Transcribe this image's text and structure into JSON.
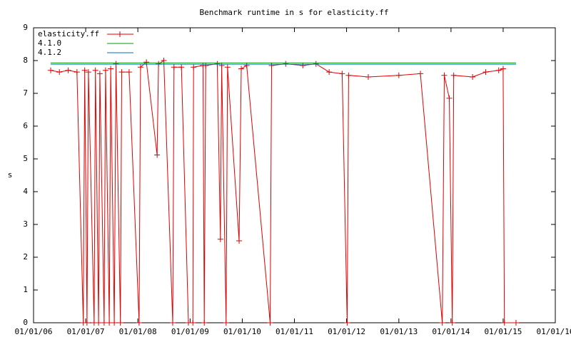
{
  "chart_data": {
    "type": "line",
    "title": "Benchmark runtime in s for elasticity.ff",
    "y_label": "s",
    "xlim": [
      "2006-01-01",
      "2016-01-01"
    ],
    "xticks": [
      {
        "value": "2006-01-01",
        "label": "01/01/06"
      },
      {
        "value": "2007-01-01",
        "label": "01/01/07"
      },
      {
        "value": "2008-01-01",
        "label": "01/01/08"
      },
      {
        "value": "2009-01-01",
        "label": "01/01/09"
      },
      {
        "value": "2010-01-01",
        "label": "01/01/10"
      },
      {
        "value": "2011-01-01",
        "label": "01/01/11"
      },
      {
        "value": "2012-01-01",
        "label": "01/01/12"
      },
      {
        "value": "2013-01-01",
        "label": "01/01/13"
      },
      {
        "value": "2014-01-01",
        "label": "01/01/14"
      },
      {
        "value": "2015-01-01",
        "label": "01/01/15"
      },
      {
        "value": "2016-01-01",
        "label": "01/01/16"
      }
    ],
    "ylim": [
      0,
      9
    ],
    "yticks": [
      0,
      1,
      2,
      3,
      4,
      5,
      6,
      7,
      8,
      9
    ],
    "legend": "top-left",
    "series": [
      {
        "name": "elasticity.ff",
        "color": "#e00000",
        "marker": "plus",
        "x": [
          "2006-05-01",
          "2006-07-01",
          "2006-09-01",
          "2006-11-01",
          "2006-12-15",
          "2006-12-25",
          "2007-01-10",
          "2007-01-20",
          "2007-03-01",
          "2007-03-10",
          "2007-04-01",
          "2007-04-10",
          "2007-05-10",
          "2007-05-20",
          "2007-06-15",
          "2007-06-25",
          "2007-07-20",
          "2007-08-01",
          "2007-09-01",
          "2007-09-10",
          "2007-11-01",
          "2008-01-10",
          "2008-01-20",
          "2008-03-01",
          "2008-05-15",
          "2008-05-25",
          "2008-07-01",
          "2008-09-01",
          "2008-09-10",
          "2008-11-01",
          "2008-12-20",
          "2009-01-20",
          "2009-01-25",
          "2009-04-01",
          "2009-04-10",
          "2009-04-20",
          "2009-07-10",
          "2009-08-01",
          "2009-08-10",
          "2009-09-10",
          "2009-09-20",
          "2009-12-10",
          "2009-12-25",
          "2010-02-01",
          "2010-07-15",
          "2010-07-25",
          "2010-11-01",
          "2011-03-01",
          "2011-06-01",
          "2011-09-01",
          "2011-12-01",
          "2012-01-05",
          "2012-01-15",
          "2012-06-01",
          "2013-01-01",
          "2013-06-01",
          "2013-11-01",
          "2013-11-15",
          "2013-12-20",
          "2014-01-10",
          "2014-01-20",
          "2014-06-01",
          "2014-09-01",
          "2014-12-01",
          "2015-01-01",
          "2015-01-10",
          "2015-04-01"
        ],
        "values": [
          7.7,
          7.65,
          7.7,
          7.65,
          0,
          7.7,
          0,
          7.65,
          0,
          7.7,
          0,
          7.6,
          0,
          7.7,
          0,
          7.75,
          0,
          7.9,
          0,
          7.65,
          7.65,
          0,
          7.8,
          7.95,
          5.12,
          7.9,
          8.0,
          0,
          7.8,
          7.8,
          0,
          0,
          7.8,
          7.85,
          0,
          7.85,
          7.9,
          2.55,
          7.85,
          0,
          7.8,
          2.5,
          7.75,
          7.85,
          0,
          7.85,
          7.9,
          7.85,
          7.9,
          7.65,
          7.6,
          0,
          7.55,
          7.5,
          7.55,
          7.6,
          0,
          7.55,
          6.85,
          0,
          7.55,
          7.5,
          7.65,
          7.7,
          7.75,
          0,
          0
        ]
      },
      {
        "name": "4.1.0",
        "color": "#00a000",
        "x": [
          "2006-05-01",
          "2015-04-01"
        ],
        "values": [
          7.93,
          7.93
        ]
      },
      {
        "name": "4.1.2",
        "color": "#0070c0",
        "x": [
          "2006-05-01",
          "2015-04-01"
        ],
        "values": [
          7.89,
          7.89
        ]
      }
    ]
  }
}
